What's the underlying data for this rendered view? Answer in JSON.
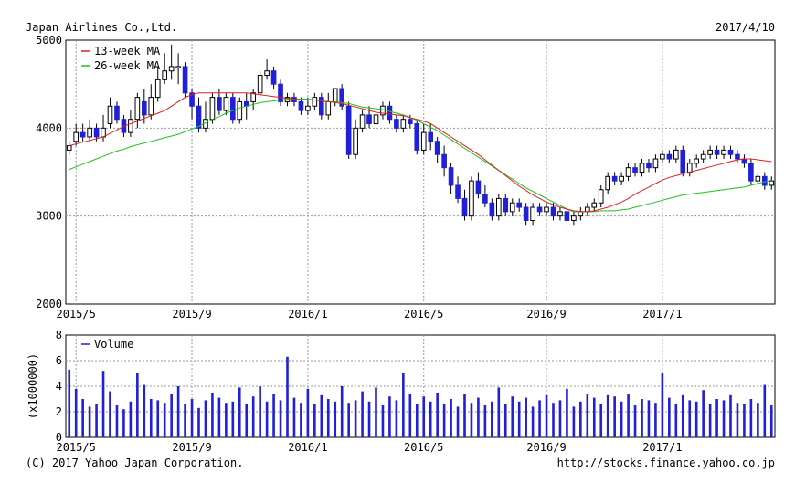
{
  "header": {
    "company": "Japan Airlines Co.,Ltd.",
    "date": "2017/4/10"
  },
  "footer": {
    "copyright": "(C) 2017 Yahoo Japan Corporation.",
    "url": "http://stocks.finance.yahoo.co.jp"
  },
  "colors": {
    "up_candle": "#ffffff",
    "down_candle": "#2020d8",
    "ma13": "#e02020",
    "ma26": "#20c020",
    "volume": "#2020d8",
    "grid": "#9a9a9a"
  },
  "chart_data": [
    {
      "type": "candlestick",
      "name": "price",
      "ylim": [
        2000,
        5000
      ],
      "yticks": [
        2000,
        3000,
        4000,
        5000
      ],
      "x_ticks": [
        {
          "label": "2015/5",
          "week": 1
        },
        {
          "label": "2015/9",
          "week": 18
        },
        {
          "label": "2016/1",
          "week": 35
        },
        {
          "label": "2016/5",
          "week": 52
        },
        {
          "label": "2016/9",
          "week": 70
        },
        {
          "label": "2017/1",
          "week": 87
        }
      ],
      "week_count": 104,
      "legend": [
        {
          "label": "13-week MA",
          "key": "ma13"
        },
        {
          "label": "26-week MA",
          "key": "ma26"
        }
      ],
      "grid": true,
      "candles": [
        [
          3750,
          3800,
          3700,
          3850
        ],
        [
          3850,
          3950,
          3800,
          4050
        ],
        [
          3950,
          3900,
          3850,
          4050
        ],
        [
          3900,
          4000,
          3850,
          4100
        ],
        [
          4000,
          3900,
          3850,
          4050
        ],
        [
          3900,
          4000,
          3850,
          4150
        ],
        [
          4050,
          4250,
          4000,
          4350
        ],
        [
          4250,
          4100,
          4050,
          4300
        ],
        [
          4100,
          3950,
          3900,
          4150
        ],
        [
          3950,
          4100,
          3900,
          4200
        ],
        [
          4100,
          4350,
          4000,
          4400
        ],
        [
          4300,
          4150,
          4050,
          4450
        ],
        [
          4150,
          4350,
          4100,
          4500
        ],
        [
          4350,
          4550,
          4300,
          4700
        ],
        [
          4550,
          4650,
          4500,
          4850
        ],
        [
          4650,
          4700,
          4550,
          4950
        ],
        [
          4700,
          4700,
          4500,
          4850
        ],
        [
          4700,
          4400,
          4350,
          4750
        ],
        [
          4400,
          4250,
          4100,
          4450
        ],
        [
          4250,
          4000,
          3950,
          4350
        ],
        [
          4000,
          4100,
          3950,
          4300
        ],
        [
          4100,
          4350,
          4050,
          4400
        ],
        [
          4350,
          4200,
          4150,
          4450
        ],
        [
          4200,
          4350,
          4150,
          4400
        ],
        [
          4350,
          4100,
          4050,
          4400
        ],
        [
          4100,
          4300,
          4050,
          4350
        ],
        [
          4300,
          4250,
          4100,
          4400
        ],
        [
          4300,
          4400,
          4200,
          4450
        ],
        [
          4400,
          4600,
          4350,
          4650
        ],
        [
          4600,
          4650,
          4550,
          4780
        ],
        [
          4650,
          4500,
          4450,
          4700
        ],
        [
          4500,
          4300,
          4250,
          4550
        ],
        [
          4300,
          4350,
          4250,
          4400
        ],
        [
          4350,
          4300,
          4250,
          4400
        ],
        [
          4300,
          4200,
          4150,
          4350
        ],
        [
          4200,
          4250,
          4150,
          4350
        ],
        [
          4250,
          4350,
          4200,
          4400
        ],
        [
          4350,
          4150,
          4100,
          4400
        ],
        [
          4150,
          4300,
          4100,
          4400
        ],
        [
          4300,
          4450,
          4250,
          4450
        ],
        [
          4450,
          4250,
          4200,
          4500
        ],
        [
          4250,
          3700,
          3650,
          4300
        ],
        [
          3700,
          4000,
          3650,
          4100
        ],
        [
          4000,
          4150,
          3950,
          4200
        ],
        [
          4150,
          4050,
          4000,
          4250
        ],
        [
          4050,
          4150,
          4000,
          4200
        ],
        [
          4150,
          4250,
          4100,
          4300
        ],
        [
          4250,
          4100,
          4050,
          4300
        ],
        [
          4100,
          4000,
          3950,
          4150
        ],
        [
          4000,
          4100,
          3950,
          4150
        ],
        [
          4100,
          4050,
          4000,
          4150
        ],
        [
          4050,
          3750,
          3700,
          4100
        ],
        [
          3750,
          3950,
          3700,
          4050
        ],
        [
          3950,
          3850,
          3750,
          4050
        ],
        [
          3850,
          3700,
          3600,
          3900
        ],
        [
          3700,
          3550,
          3450,
          3800
        ],
        [
          3550,
          3350,
          3250,
          3600
        ],
        [
          3350,
          3200,
          3150,
          3450
        ],
        [
          3200,
          3000,
          2950,
          3300
        ],
        [
          3000,
          3400,
          2950,
          3450
        ],
        [
          3400,
          3250,
          3200,
          3500
        ],
        [
          3250,
          3150,
          3100,
          3350
        ],
        [
          3150,
          3000,
          2950,
          3200
        ],
        [
          3000,
          3200,
          2950,
          3250
        ],
        [
          3200,
          3050,
          3000,
          3250
        ],
        [
          3050,
          3150,
          3000,
          3200
        ],
        [
          3150,
          3100,
          3050,
          3200
        ],
        [
          3100,
          2950,
          2900,
          3150
        ],
        [
          2950,
          3100,
          2900,
          3150
        ],
        [
          3100,
          3050,
          3000,
          3150
        ],
        [
          3050,
          3100,
          3000,
          3150
        ],
        [
          3100,
          3000,
          2950,
          3150
        ],
        [
          3000,
          3050,
          2950,
          3100
        ],
        [
          3050,
          2950,
          2900,
          3100
        ],
        [
          2950,
          3000,
          2900,
          3050
        ],
        [
          3000,
          3050,
          2950,
          3100
        ],
        [
          3050,
          3100,
          3000,
          3150
        ],
        [
          3100,
          3150,
          3050,
          3200
        ],
        [
          3150,
          3300,
          3100,
          3350
        ],
        [
          3300,
          3450,
          3250,
          3500
        ],
        [
          3450,
          3400,
          3350,
          3500
        ],
        [
          3400,
          3450,
          3350,
          3500
        ],
        [
          3450,
          3550,
          3400,
          3600
        ],
        [
          3550,
          3500,
          3450,
          3600
        ],
        [
          3500,
          3600,
          3450,
          3650
        ],
        [
          3600,
          3550,
          3500,
          3650
        ],
        [
          3550,
          3650,
          3500,
          3700
        ],
        [
          3650,
          3700,
          3600,
          3750
        ],
        [
          3700,
          3650,
          3600,
          3750
        ],
        [
          3650,
          3750,
          3600,
          3800
        ],
        [
          3750,
          3500,
          3450,
          3800
        ],
        [
          3500,
          3600,
          3450,
          3650
        ],
        [
          3600,
          3650,
          3550,
          3700
        ],
        [
          3650,
          3700,
          3600,
          3750
        ],
        [
          3700,
          3750,
          3650,
          3800
        ],
        [
          3750,
          3700,
          3650,
          3800
        ],
        [
          3700,
          3750,
          3650,
          3800
        ],
        [
          3750,
          3700,
          3650,
          3800
        ],
        [
          3700,
          3650,
          3600,
          3750
        ],
        [
          3650,
          3600,
          3550,
          3700
        ],
        [
          3600,
          3400,
          3350,
          3650
        ],
        [
          3400,
          3450,
          3350,
          3500
        ],
        [
          3450,
          3350,
          3300,
          3500
        ],
        [
          3350,
          3400,
          3300,
          3450
        ]
      ],
      "ma13": [
        3800,
        3820,
        3840,
        3860,
        3880,
        3900,
        3940,
        3980,
        4020,
        4050,
        4080,
        4110,
        4140,
        4170,
        4200,
        4250,
        4300,
        4350,
        4380,
        4400,
        4400,
        4400,
        4400,
        4400,
        4400,
        4400,
        4400,
        4390,
        4380,
        4370,
        4360,
        4350,
        4340,
        4330,
        4320,
        4320,
        4320,
        4310,
        4300,
        4290,
        4280,
        4260,
        4240,
        4220,
        4200,
        4180,
        4170,
        4160,
        4150,
        4140,
        4120,
        4100,
        4080,
        4050,
        4000,
        3950,
        3900,
        3850,
        3800,
        3750,
        3700,
        3640,
        3580,
        3520,
        3460,
        3400,
        3340,
        3290,
        3240,
        3200,
        3160,
        3130,
        3100,
        3080,
        3060,
        3050,
        3050,
        3060,
        3080,
        3100,
        3130,
        3160,
        3200,
        3250,
        3290,
        3330,
        3370,
        3410,
        3440,
        3460,
        3480,
        3500,
        3520,
        3540,
        3560,
        3580,
        3600,
        3620,
        3640,
        3650,
        3650,
        3640,
        3630,
        3620
      ],
      "ma26": [
        3530,
        3560,
        3590,
        3620,
        3650,
        3680,
        3710,
        3740,
        3760,
        3790,
        3810,
        3830,
        3850,
        3870,
        3890,
        3910,
        3930,
        3960,
        3990,
        4020,
        4060,
        4100,
        4130,
        4170,
        4200,
        4230,
        4250,
        4270,
        4290,
        4300,
        4310,
        4320,
        4330,
        4330,
        4330,
        4330,
        4320,
        4310,
        4300,
        4300,
        4290,
        4280,
        4260,
        4240,
        4230,
        4220,
        4210,
        4190,
        4170,
        4150,
        4120,
        4090,
        4050,
        4010,
        3970,
        3920,
        3870,
        3820,
        3770,
        3720,
        3670,
        3620,
        3570,
        3520,
        3470,
        3420,
        3370,
        3320,
        3280,
        3240,
        3200,
        3160,
        3120,
        3080,
        3050,
        3050,
        3050,
        3050,
        3060,
        3060,
        3060,
        3070,
        3080,
        3100,
        3120,
        3140,
        3160,
        3180,
        3200,
        3220,
        3240,
        3250,
        3260,
        3270,
        3280,
        3290,
        3300,
        3310,
        3320,
        3330,
        3350,
        3370,
        3390,
        3410
      ]
    },
    {
      "type": "bar",
      "name": "volume",
      "ylabel": "(x1000000)",
      "ylim": [
        0,
        8
      ],
      "yticks": [
        0,
        2,
        4,
        6,
        8
      ],
      "legend": [
        {
          "label": "Volume",
          "key": "volume"
        }
      ],
      "grid": true,
      "values": [
        5.3,
        3.8,
        3.0,
        2.4,
        2.6,
        5.2,
        3.6,
        2.5,
        2.2,
        2.8,
        5.0,
        4.1,
        3.0,
        2.9,
        2.7,
        3.4,
        4.0,
        2.6,
        3.0,
        2.3,
        2.9,
        3.5,
        3.1,
        2.7,
        2.8,
        3.9,
        2.6,
        3.2,
        4.0,
        2.8,
        3.4,
        2.9,
        6.3,
        3.1,
        2.7,
        3.8,
        2.6,
        3.3,
        3.0,
        2.8,
        4.0,
        2.7,
        2.9,
        3.6,
        2.8,
        3.9,
        2.5,
        3.2,
        2.9,
        5.0,
        3.4,
        2.6,
        3.2,
        2.8,
        3.5,
        2.6,
        3.0,
        2.4,
        3.4,
        2.7,
        3.1,
        2.5,
        2.8,
        3.9,
        2.6,
        3.2,
        2.8,
        3.1,
        2.4,
        2.9,
        3.3,
        2.7,
        2.9,
        3.8,
        2.4,
        2.8,
        3.4,
        3.1,
        2.6,
        3.3,
        3.2,
        2.8,
        3.4,
        2.5,
        3.0,
        2.9,
        2.7,
        5.0,
        3.1,
        2.6,
        3.3,
        2.9,
        2.8,
        3.7,
        2.6,
        3.0,
        2.9,
        3.3,
        2.7,
        2.6,
        3.0,
        2.7,
        4.1,
        2.5
      ]
    }
  ]
}
